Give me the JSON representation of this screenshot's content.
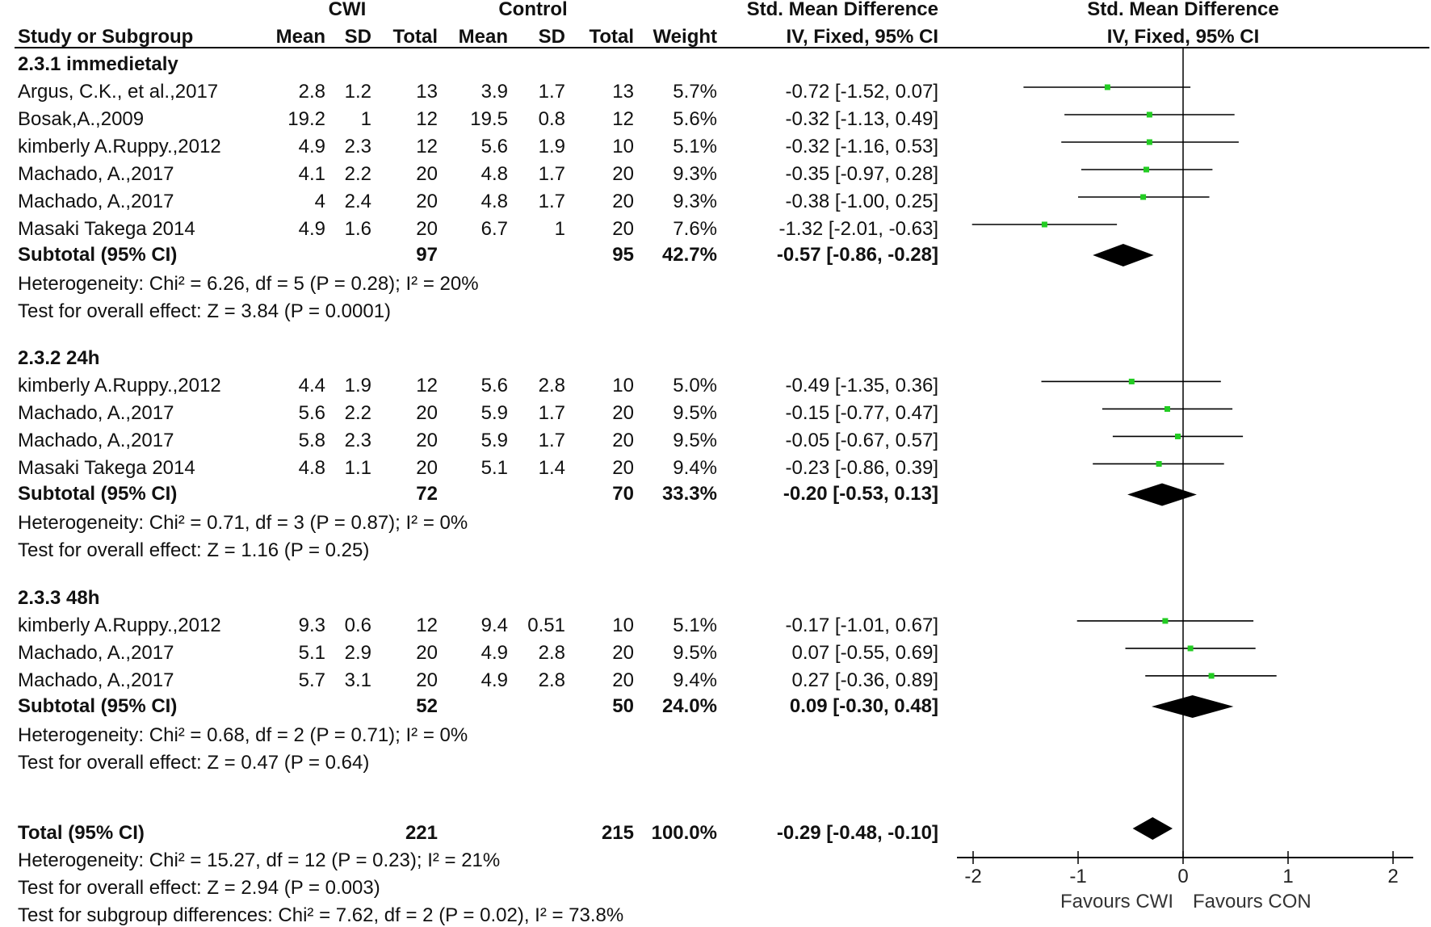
{
  "header": {
    "group1": "CWI",
    "group2": "Control",
    "smd_title": "Std. Mean Difference",
    "smd_sub": "IV, Fixed, 95% CI",
    "plot_title": "Std. Mean Difference",
    "plot_sub": "IV, Fixed, 95% CI",
    "col_study": "Study or Subgroup",
    "col_mean": "Mean",
    "col_sd": "SD",
    "col_total": "Total",
    "col_weight": "Weight"
  },
  "subgroups": [
    {
      "title": "2.3.1 immedietaly",
      "studies": [
        {
          "name": "Argus, C.K., et al.,2017",
          "m1": "2.8",
          "sd1": "1.2",
          "n1": "13",
          "m2": "3.9",
          "sd2": "1.7",
          "n2": "13",
          "weight": "5.7%",
          "ci_text": "-0.72 [-1.52, 0.07]",
          "est": -0.72,
          "lo": -1.52,
          "hi": 0.07
        },
        {
          "name": "Bosak,A.,2009",
          "m1": "19.2",
          "sd1": "1",
          "n1": "12",
          "m2": "19.5",
          "sd2": "0.8",
          "n2": "12",
          "weight": "5.6%",
          "ci_text": "-0.32 [-1.13, 0.49]",
          "est": -0.32,
          "lo": -1.13,
          "hi": 0.49
        },
        {
          "name": "kimberly A.Ruppy.,2012",
          "m1": "4.9",
          "sd1": "2.3",
          "n1": "12",
          "m2": "5.6",
          "sd2": "1.9",
          "n2": "10",
          "weight": "5.1%",
          "ci_text": "-0.32 [-1.16, 0.53]",
          "est": -0.32,
          "lo": -1.16,
          "hi": 0.53
        },
        {
          "name": "Machado, A.,2017",
          "m1": "4.1",
          "sd1": "2.2",
          "n1": "20",
          "m2": "4.8",
          "sd2": "1.7",
          "n2": "20",
          "weight": "9.3%",
          "ci_text": "-0.35 [-0.97, 0.28]",
          "est": -0.35,
          "lo": -0.97,
          "hi": 0.28
        },
        {
          "name": "Machado, A.,2017",
          "m1": "4",
          "sd1": "2.4",
          "n1": "20",
          "m2": "4.8",
          "sd2": "1.7",
          "n2": "20",
          "weight": "9.3%",
          "ci_text": "-0.38 [-1.00, 0.25]",
          "est": -0.38,
          "lo": -1.0,
          "hi": 0.25
        },
        {
          "name": "Masaki Takega 2014",
          "m1": "4.9",
          "sd1": "1.6",
          "n1": "20",
          "m2": "6.7",
          "sd2": "1",
          "n2": "20",
          "weight": "7.6%",
          "ci_text": "-1.32 [-2.01, -0.63]",
          "est": -1.32,
          "lo": -2.01,
          "hi": -0.63
        }
      ],
      "subtotal": {
        "label": "Subtotal (95% CI)",
        "n1": "97",
        "n2": "95",
        "weight": "42.7%",
        "ci_text": "-0.57 [-0.86, -0.28]",
        "est": -0.57,
        "lo": -0.86,
        "hi": -0.28
      },
      "heterogeneity": "Heterogeneity: Chi² = 6.26, df = 5 (P = 0.28); I² = 20%",
      "overall": "Test for overall effect: Z = 3.84 (P = 0.0001)"
    },
    {
      "title": "2.3.2 24h",
      "studies": [
        {
          "name": "kimberly A.Ruppy.,2012",
          "m1": "4.4",
          "sd1": "1.9",
          "n1": "12",
          "m2": "5.6",
          "sd2": "2.8",
          "n2": "10",
          "weight": "5.0%",
          "ci_text": "-0.49 [-1.35, 0.36]",
          "est": -0.49,
          "lo": -1.35,
          "hi": 0.36
        },
        {
          "name": "Machado, A.,2017",
          "m1": "5.6",
          "sd1": "2.2",
          "n1": "20",
          "m2": "5.9",
          "sd2": "1.7",
          "n2": "20",
          "weight": "9.5%",
          "ci_text": "-0.15 [-0.77, 0.47]",
          "est": -0.15,
          "lo": -0.77,
          "hi": 0.47
        },
        {
          "name": "Machado, A.,2017",
          "m1": "5.8",
          "sd1": "2.3",
          "n1": "20",
          "m2": "5.9",
          "sd2": "1.7",
          "n2": "20",
          "weight": "9.5%",
          "ci_text": "-0.05 [-0.67, 0.57]",
          "est": -0.05,
          "lo": -0.67,
          "hi": 0.57
        },
        {
          "name": "Masaki Takega 2014",
          "m1": "4.8",
          "sd1": "1.1",
          "n1": "20",
          "m2": "5.1",
          "sd2": "1.4",
          "n2": "20",
          "weight": "9.4%",
          "ci_text": "-0.23 [-0.86, 0.39]",
          "est": -0.23,
          "lo": -0.86,
          "hi": 0.39
        }
      ],
      "subtotal": {
        "label": "Subtotal (95% CI)",
        "n1": "72",
        "n2": "70",
        "weight": "33.3%",
        "ci_text": "-0.20 [-0.53, 0.13]",
        "est": -0.2,
        "lo": -0.53,
        "hi": 0.13
      },
      "heterogeneity": "Heterogeneity: Chi² = 0.71, df = 3 (P = 0.87); I² = 0%",
      "overall": "Test for overall effect: Z = 1.16 (P = 0.25)"
    },
    {
      "title": "2.3.3 48h",
      "studies": [
        {
          "name": "kimberly A.Ruppy.,2012",
          "m1": "9.3",
          "sd1": "0.6",
          "n1": "12",
          "m2": "9.4",
          "sd2": "0.51",
          "n2": "10",
          "weight": "5.1%",
          "ci_text": "-0.17 [-1.01, 0.67]",
          "est": -0.17,
          "lo": -1.01,
          "hi": 0.67
        },
        {
          "name": "Machado, A.,2017",
          "m1": "5.1",
          "sd1": "2.9",
          "n1": "20",
          "m2": "4.9",
          "sd2": "2.8",
          "n2": "20",
          "weight": "9.5%",
          "ci_text": "0.07 [-0.55, 0.69]",
          "est": 0.07,
          "lo": -0.55,
          "hi": 0.69
        },
        {
          "name": "Machado, A.,2017",
          "m1": "5.7",
          "sd1": "3.1",
          "n1": "20",
          "m2": "4.9",
          "sd2": "2.8",
          "n2": "20",
          "weight": "9.4%",
          "ci_text": "0.27 [-0.36, 0.89]",
          "est": 0.27,
          "lo": -0.36,
          "hi": 0.89
        }
      ],
      "subtotal": {
        "label": "Subtotal (95% CI)",
        "n1": "52",
        "n2": "50",
        "weight": "24.0%",
        "ci_text": "0.09 [-0.30, 0.48]",
        "est": 0.09,
        "lo": -0.3,
        "hi": 0.48
      },
      "heterogeneity": "Heterogeneity: Chi² = 0.68, df = 2 (P = 0.71); I² = 0%",
      "overall": "Test for overall effect: Z = 0.47 (P = 0.64)"
    }
  ],
  "total": {
    "label": "Total (95% CI)",
    "n1": "221",
    "n2": "215",
    "weight": "100.0%",
    "ci_text": "-0.29 [-0.48, -0.10]",
    "est": -0.29,
    "lo": -0.48,
    "hi": -0.1
  },
  "footer": {
    "heterogeneity": "Heterogeneity: Chi² = 15.27, df = 12 (P = 0.23); I² = 21%",
    "overall": "Test for overall effect: Z = 2.94 (P = 0.003)",
    "subgroup": "Test for subgroup differences: Chi² = 7.62, df = 2 (P = 0.02), I² = 73.8%"
  },
  "axis": {
    "ticks": [
      -2,
      -1,
      0,
      1,
      2
    ],
    "tick_labels": [
      "-2",
      "-1",
      "0",
      "1",
      "2"
    ],
    "favours_left": "Favours CWI",
    "favours_right": "Favours CON"
  },
  "colors": {
    "marker": "#22cc22",
    "line": "#000000",
    "diamond": "#000000"
  },
  "chart_data": {
    "type": "scatter",
    "title": "Std. Mean Difference IV, Fixed, 95% CI",
    "xlabel": "Favours CWI    Favours CON",
    "xlim": [
      -2,
      2
    ],
    "series": [
      {
        "name": "2.3.1 immedietaly",
        "estimates": [
          -0.72,
          -0.32,
          -0.32,
          -0.35,
          -0.38,
          -1.32
        ],
        "ci_low": [
          -1.52,
          -1.13,
          -1.16,
          -0.97,
          -1.0,
          -2.01
        ],
        "ci_high": [
          0.07,
          0.49,
          0.53,
          0.28,
          0.25,
          -0.63
        ],
        "pooled": -0.57
      },
      {
        "name": "2.3.2 24h",
        "estimates": [
          -0.49,
          -0.15,
          -0.05,
          -0.23
        ],
        "ci_low": [
          -1.35,
          -0.77,
          -0.67,
          -0.86
        ],
        "ci_high": [
          0.36,
          0.47,
          0.57,
          0.39
        ],
        "pooled": -0.2
      },
      {
        "name": "2.3.3 48h",
        "estimates": [
          -0.17,
          0.07,
          0.27
        ],
        "ci_low": [
          -1.01,
          -0.55,
          -0.36
        ],
        "ci_high": [
          0.67,
          0.69,
          0.89
        ],
        "pooled": 0.09
      }
    ],
    "overall": {
      "estimate": -0.29,
      "ci_low": -0.48,
      "ci_high": -0.1
    }
  }
}
